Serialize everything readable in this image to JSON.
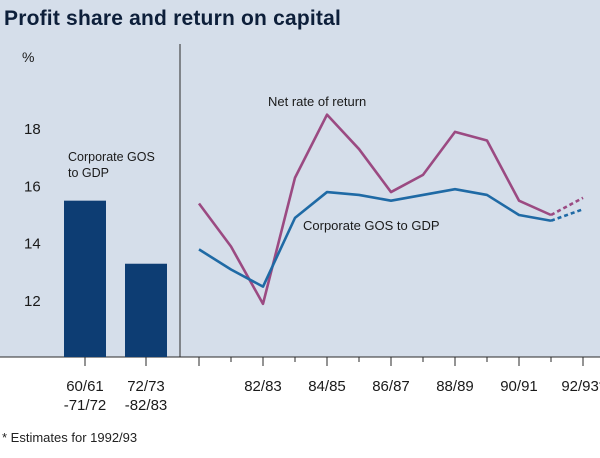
{
  "title": "Profit share and return on capital",
  "footnote": "* Estimates for 1992/93",
  "colors": {
    "panel": "#d5deea",
    "bar": "#0d3d73",
    "gos_line": "#1f6aa5",
    "return_line": "#9b4a82",
    "title_text": "#0d1f3a"
  },
  "chart_data": [
    {
      "type": "bar",
      "categories": [
        "60/61 -71/72",
        "72/73 -82/83"
      ],
      "category_lines": [
        [
          "60/61",
          "-71/72"
        ],
        [
          "72/73",
          "-82/83"
        ]
      ],
      "values": [
        15.5,
        13.3
      ],
      "label": [
        "Corporate GOS",
        "to GDP"
      ],
      "ylabel": "%",
      "yticks": [
        12,
        14,
        16,
        18
      ],
      "ylim": [
        10,
        19
      ]
    },
    {
      "type": "line",
      "x": [
        "80/81",
        "81/82",
        "82/83",
        "83/84",
        "84/85",
        "85/86",
        "86/87",
        "87/88",
        "88/89",
        "89/90",
        "90/91",
        "91/92",
        "92/93*"
      ],
      "xtick_labels": [
        "82/83",
        "84/85",
        "86/87",
        "88/89",
        "90/91",
        "92/93*"
      ],
      "ylim": [
        10,
        19
      ],
      "estimate_from_index": 11,
      "series": [
        {
          "name": "Net rate of return",
          "values": [
            15.4,
            13.9,
            11.9,
            16.3,
            18.5,
            17.3,
            15.8,
            16.4,
            17.9,
            17.6,
            15.5,
            15.0,
            15.6
          ]
        },
        {
          "name": "Corporate GOS to GDP",
          "values": [
            13.8,
            13.1,
            12.5,
            14.9,
            15.8,
            15.7,
            15.5,
            15.7,
            15.9,
            15.7,
            15.0,
            14.8,
            15.2
          ]
        }
      ]
    }
  ]
}
